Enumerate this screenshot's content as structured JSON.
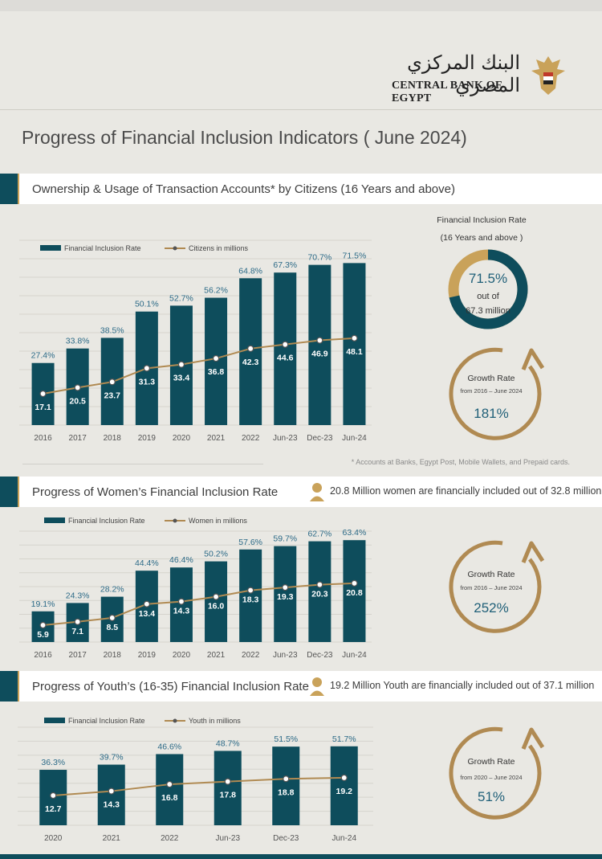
{
  "header": {
    "logo_arabic": "البنك المركزي المصري",
    "logo_english": "CENTRAL BANK OF EGYPT",
    "title": "Progress of Financial Inclusion Indicators ( June 2024)"
  },
  "colors": {
    "bar": "#0e4d5c",
    "line": "#b08a52",
    "gold": "#c9a25a",
    "teal": "#0e4d5c",
    "label": "#2c6a87"
  },
  "section1": {
    "title": "Ownership & Usage of Transaction Accounts* by Citizens (16 Years and above)",
    "footnote": "* Accounts at Banks, Egypt Post, Mobile Wallets, and Prepaid cards.",
    "donut": {
      "caption_line1": "Financial Inclusion Rate",
      "caption_line2": "(16 Years and above )",
      "value": "71.5%",
      "line2": "out of",
      "line3": "67.3 million",
      "fraction": 0.715
    },
    "growth": {
      "title": "Growth Rate",
      "period": "from 2016 – June 2024",
      "value": "181%"
    }
  },
  "section2": {
    "title": "Progress of Women’s Financial Inclusion Rate",
    "note": "20.8 Million women are financially included out of 32.8 million",
    "growth": {
      "title": "Growth Rate",
      "period": "from 2016 – June 2024",
      "value": "252%"
    }
  },
  "section3": {
    "title": "Progress of Youth’s (16-35) Financial Inclusion Rate",
    "note": "19.2 Million Youth  are financially included out of 37.1 million",
    "growth": {
      "title": "Growth Rate",
      "period": "from 2020 – June 2024",
      "value": "51%"
    }
  },
  "chart_data": [
    {
      "type": "bar",
      "title": "Ownership & Usage of Transaction Accounts* by Citizens (16 Years and above)",
      "categories": [
        "2016",
        "2017",
        "2018",
        "2019",
        "2020",
        "2021",
        "2022",
        "Jun-23",
        "Dec-23",
        "Jun-24"
      ],
      "series": [
        {
          "name": "Financial Inclusion Rate",
          "type": "bar",
          "values": [
            27.4,
            33.8,
            38.5,
            50.1,
            52.7,
            56.2,
            64.8,
            67.3,
            70.7,
            71.5
          ],
          "labels": [
            "27.4%",
            "33.8%",
            "38.5%",
            "50.1%",
            "52.7%",
            "56.2%",
            "64.8%",
            "67.3%",
            "70.7%",
            "71.5%"
          ]
        },
        {
          "name": "Citizens in millions",
          "type": "line",
          "values": [
            17.1,
            20.5,
            23.7,
            31.3,
            33.4,
            36.8,
            42.3,
            44.6,
            46.9,
            48.1
          ],
          "labels": [
            "17.1",
            "20.5",
            "23.7",
            "31.3",
            "33.4",
            "36.8",
            "42.3",
            "44.6",
            "46.9",
            "48.1"
          ]
        }
      ],
      "legend": "top-left",
      "grid": true
    },
    {
      "type": "bar",
      "title": "Progress of Women’s Financial Inclusion Rate",
      "categories": [
        "2016",
        "2017",
        "2018",
        "2019",
        "2020",
        "2021",
        "2022",
        "Jun-23",
        "Dec-23",
        "Jun-24"
      ],
      "series": [
        {
          "name": "Financial Inclusion Rate",
          "type": "bar",
          "values": [
            19.1,
            24.3,
            28.2,
            44.4,
            46.4,
            50.2,
            57.6,
            59.7,
            62.7,
            63.4
          ],
          "labels": [
            "19.1%",
            "24.3%",
            "28.2%",
            "44.4%",
            "46.4%",
            "50.2%",
            "57.6%",
            "59.7%",
            "62.7%",
            "63.4%"
          ]
        },
        {
          "name": "Women in millions",
          "type": "line",
          "values": [
            5.9,
            7.1,
            8.5,
            13.4,
            14.3,
            16.0,
            18.3,
            19.3,
            20.3,
            20.8
          ],
          "labels": [
            "5.9",
            "7.1",
            "8.5",
            "13.4",
            "14.3",
            "16.0",
            "18.3",
            "19.3",
            "20.3",
            "20.8"
          ]
        }
      ],
      "legend": "top-left",
      "grid": true
    },
    {
      "type": "bar",
      "title": "Progress of Youth’s (16-35) Financial Inclusion Rate",
      "categories": [
        "2020",
        "2021",
        "2022",
        "Jun-23",
        "Dec-23",
        "Jun-24"
      ],
      "series": [
        {
          "name": "Financial Inclusion Rate",
          "type": "bar",
          "values": [
            36.3,
            39.7,
            46.6,
            48.7,
            51.5,
            51.7
          ],
          "labels": [
            "36.3%",
            "39.7%",
            "46.6%",
            "48.7%",
            "51.5%",
            "51.7%"
          ]
        },
        {
          "name": "Youth in millions",
          "type": "line",
          "values": [
            12.7,
            14.3,
            16.8,
            17.8,
            18.8,
            19.2
          ],
          "labels": [
            "12.7",
            "14.3",
            "16.8",
            "17.8",
            "18.8",
            "19.2"
          ]
        }
      ],
      "legend": "top-left",
      "grid": true
    }
  ]
}
